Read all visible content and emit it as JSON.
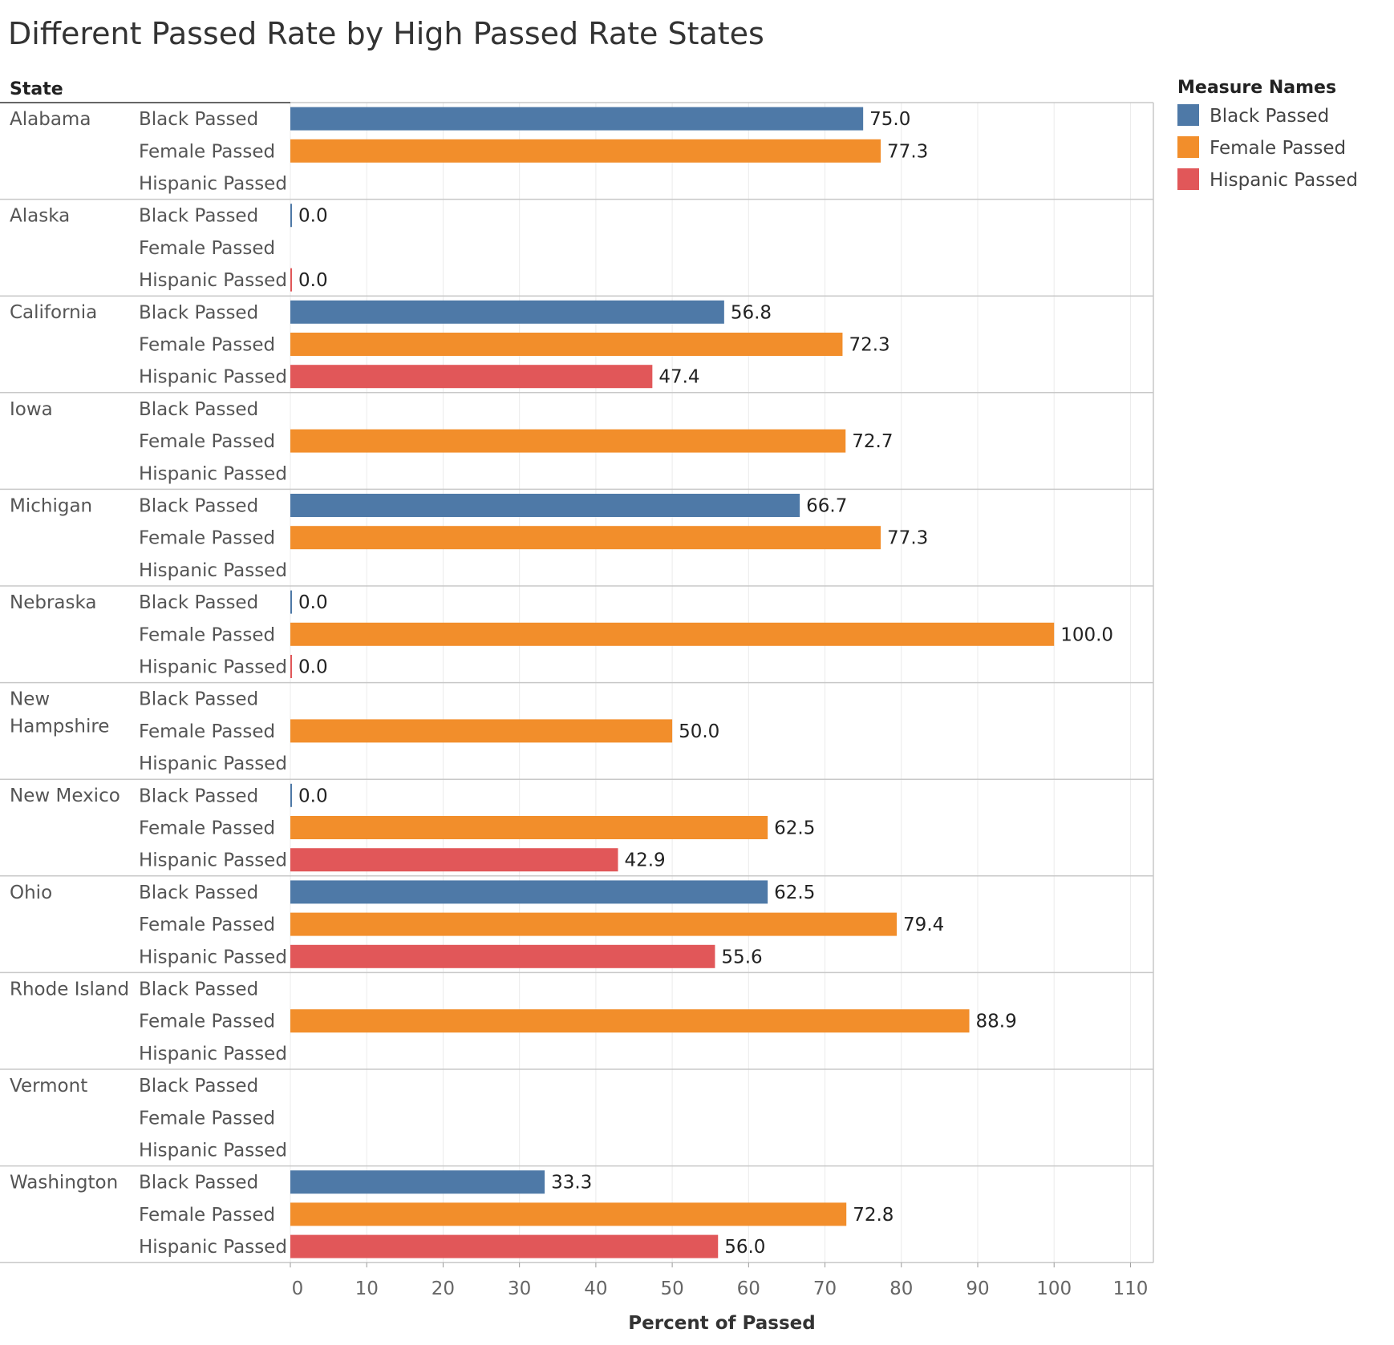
{
  "chart_data": {
    "type": "bar",
    "orientation": "horizontal",
    "title": "Different Passed Rate by High Passed Rate States",
    "row_header": "State",
    "xlabel": "Percent of Passed",
    "xlim": [
      0,
      113
    ],
    "x_ticks": [
      0,
      10,
      20,
      30,
      40,
      50,
      60,
      70,
      80,
      90,
      100,
      110
    ],
    "grid": true,
    "legend": {
      "title": "Measure Names",
      "placement": "top-right",
      "items": [
        {
          "name": "Black Passed",
          "color": "#4e79a7"
        },
        {
          "name": "Female Passed",
          "color": "#f28e2b"
        },
        {
          "name": "Hispanic Passed",
          "color": "#e15759"
        }
      ]
    },
    "measures": [
      "Black Passed",
      "Female Passed",
      "Hispanic Passed"
    ],
    "states": [
      {
        "state": "Alabama",
        "values": [
          75.0,
          77.3,
          null
        ]
      },
      {
        "state": "Alaska",
        "values": [
          0.0,
          null,
          0.0
        ]
      },
      {
        "state": "California",
        "values": [
          56.8,
          72.3,
          47.4
        ]
      },
      {
        "state": "Iowa",
        "values": [
          null,
          72.7,
          null
        ]
      },
      {
        "state": "Michigan",
        "values": [
          66.7,
          77.3,
          null
        ]
      },
      {
        "state": "Nebraska",
        "values": [
          0.0,
          100.0,
          0.0
        ]
      },
      {
        "state": "New Hampshire",
        "values": [
          null,
          50.0,
          null
        ]
      },
      {
        "state": "New Mexico",
        "values": [
          0.0,
          62.5,
          42.9
        ]
      },
      {
        "state": "Ohio",
        "values": [
          62.5,
          79.4,
          55.6
        ]
      },
      {
        "state": "Rhode Island",
        "values": [
          null,
          88.9,
          null
        ]
      },
      {
        "state": "Vermont",
        "values": [
          null,
          null,
          null
        ]
      },
      {
        "state": "Washington",
        "values": [
          33.3,
          72.8,
          56.0
        ]
      }
    ]
  }
}
